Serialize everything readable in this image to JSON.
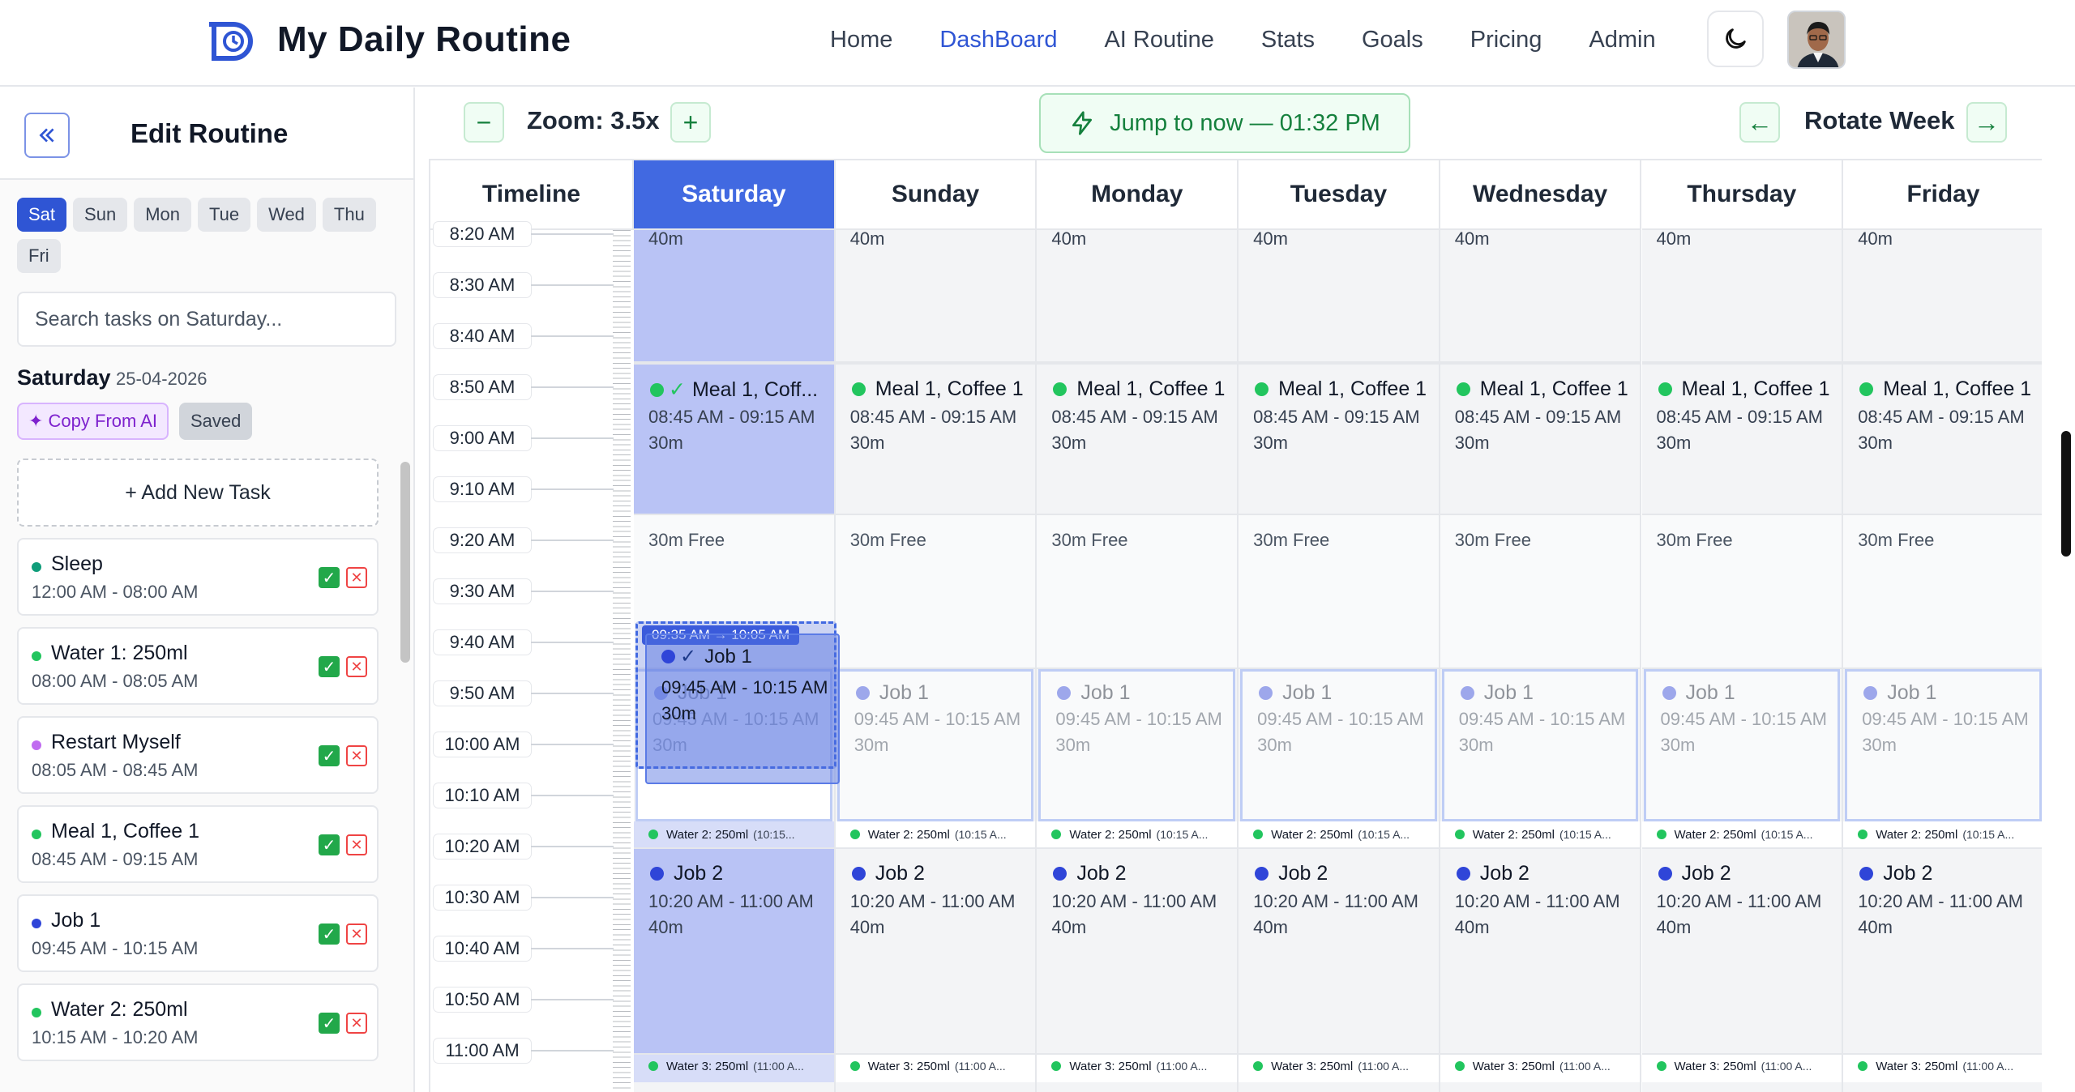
{
  "app": {
    "title": "My Daily Routine",
    "nav": [
      "Home",
      "DashBoard",
      "AI Routine",
      "Stats",
      "Goals",
      "Pricing",
      "Admin"
    ],
    "active_nav": "DashBoard",
    "brand_color": "#2f55d4"
  },
  "sidebar": {
    "title": "Edit Routine",
    "days": [
      "Sat",
      "Sun",
      "Mon",
      "Tue",
      "Wed",
      "Thu",
      "Fri"
    ],
    "active_day": "Sat",
    "search_placeholder": "Search tasks on Saturday...",
    "day_name": "Saturday",
    "day_date": "25-04-2026",
    "copy_ai_label": "✦ Copy From AI",
    "saved_label": "Saved",
    "add_task_label": "+ Add New Task",
    "tasks": [
      {
        "name": "Sleep",
        "time": "12:00 AM - 08:00 AM",
        "color": "#0f9d7a"
      },
      {
        "name": "Water 1: 250ml",
        "time": "08:00 AM - 08:05 AM",
        "color": "#22c55e"
      },
      {
        "name": "Restart Myself",
        "time": "08:05 AM - 08:45 AM",
        "color": "#c06cf0"
      },
      {
        "name": "Meal 1, Coffee 1",
        "time": "08:45 AM - 09:15 AM",
        "color": "#22c55e"
      },
      {
        "name": "Job 1",
        "time": "09:45 AM - 10:15 AM",
        "color": "#2f45d8"
      },
      {
        "name": "Water 2: 250ml",
        "time": "10:15 AM - 10:20 AM",
        "color": "#22c55e"
      }
    ]
  },
  "toolbar": {
    "zoom_label": "Zoom: 3.5x",
    "zoom_out": "−",
    "zoom_in": "+",
    "jump_label": "Jump to now — 01:32 PM",
    "rotate_label": "Rotate Week",
    "rotate_prev": "←",
    "rotate_next": "→"
  },
  "timeline": {
    "header": "Timeline",
    "labels": [
      "8:20 AM",
      "8:30 AM",
      "8:40 AM",
      "8:50 AM",
      "9:00 AM",
      "9:10 AM",
      "9:20 AM",
      "9:30 AM",
      "9:40 AM",
      "9:50 AM",
      "10:00 AM",
      "10:10 AM",
      "10:20 AM",
      "10:30 AM",
      "10:40 AM",
      "10:50 AM",
      "11:00 AM"
    ]
  },
  "days": [
    "Saturday",
    "Sunday",
    "Monday",
    "Tuesday",
    "Wednesday",
    "Thursday",
    "Friday"
  ],
  "active_day": "Saturday",
  "events": {
    "prev_duration": "40m",
    "meal_name": "Meal 1, Coffee 1",
    "meal_name_short": "Meal 1, Coff...",
    "meal_time": "08:45 AM - 09:15 AM",
    "meal_dur": "30m",
    "free_label": "30m Free",
    "job1_name": "Job 1",
    "job1_time": "09:45 AM - 10:15 AM",
    "job1_dur": "30m",
    "drag_range": "09:35 AM → 10:05 AM",
    "water2_name": "Water 2: 250ml",
    "water2_time_sat": "(10:15...",
    "water2_time": "(10:15 A...",
    "job2_name": "Job 2",
    "job2_time": "10:20 AM - 11:00 AM",
    "job2_dur": "40m",
    "water3_name": "Water 3: 250ml",
    "water3_time": "(11:00 A..."
  },
  "colors": {
    "green": "#22c55e",
    "blue": "#2f45d8",
    "active_header": "#4169e1",
    "sat_fill": "#b9c3f5"
  }
}
